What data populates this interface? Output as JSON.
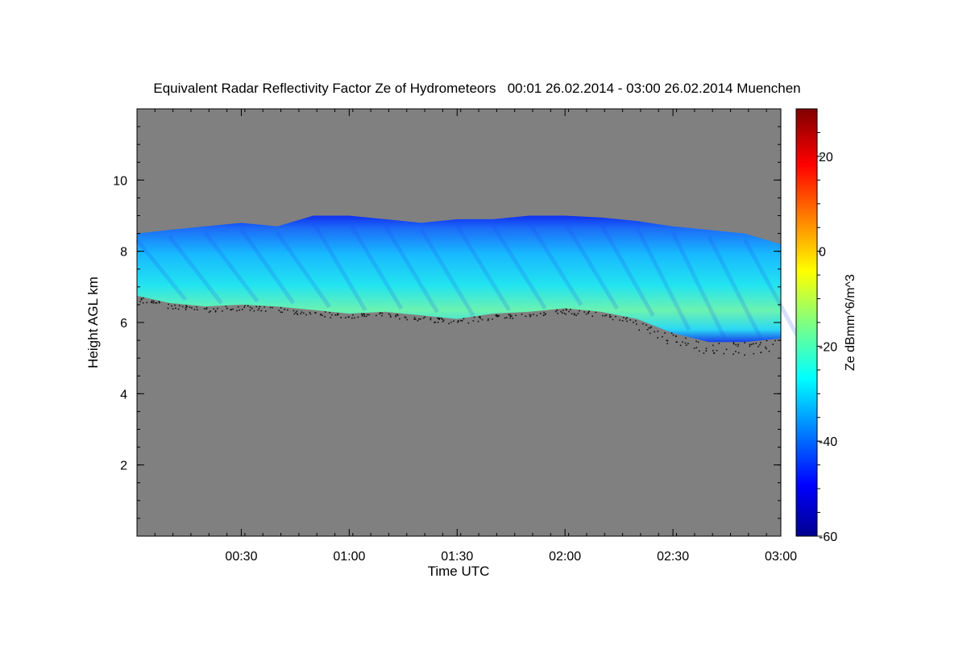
{
  "chart_data": {
    "type": "heatmap",
    "title": "Equivalent Radar Reflectivity Factor Ze of Hydrometeors   00:01 26.02.2014 - 03:00 26.02.2014 Muenchen",
    "xlabel": "Time UTC",
    "ylabel": "Height AGL km",
    "x_range_minutes": [
      1,
      180
    ],
    "ylim": [
      0,
      12
    ],
    "x_ticks": [
      {
        "minute": 30,
        "label": "00:30"
      },
      {
        "minute": 60,
        "label": "01:00"
      },
      {
        "minute": 90,
        "label": "01:30"
      },
      {
        "minute": 120,
        "label": "02:00"
      },
      {
        "minute": 150,
        "label": "02:30"
      },
      {
        "minute": 180,
        "label": "03:00"
      }
    ],
    "y_ticks": [
      {
        "value": 2,
        "label": "2"
      },
      {
        "value": 4,
        "label": "4"
      },
      {
        "value": 6,
        "label": "6"
      },
      {
        "value": 8,
        "label": "8"
      },
      {
        "value": 10,
        "label": "10"
      }
    ],
    "colorbar": {
      "label": "Ze dBmm^6/m^3",
      "range": [
        -60,
        30
      ],
      "ticks": [
        {
          "value": -60,
          "label": "-60"
        },
        {
          "value": -40,
          "label": "-40"
        },
        {
          "value": -20,
          "label": "-20"
        },
        {
          "value": 0,
          "label": "0"
        },
        {
          "value": 20,
          "label": "20"
        }
      ]
    },
    "background_color": "#808080",
    "echo_layer": {
      "description_times_minutes": [
        1,
        10,
        20,
        30,
        40,
        50,
        60,
        70,
        80,
        90,
        100,
        110,
        120,
        130,
        140,
        150,
        160,
        170,
        180
      ],
      "top_km": [
        8.5,
        8.6,
        8.7,
        8.8,
        8.7,
        9.0,
        9.0,
        8.9,
        8.8,
        8.9,
        8.9,
        9.0,
        9.0,
        8.95,
        8.85,
        8.7,
        8.6,
        8.5,
        8.2
      ],
      "base_km": [
        6.75,
        6.55,
        6.45,
        6.5,
        6.45,
        6.35,
        6.25,
        6.3,
        6.2,
        6.1,
        6.25,
        6.3,
        6.4,
        6.3,
        6.1,
        5.7,
        5.45,
        5.45,
        5.55
      ],
      "core_dbz": [
        -24,
        -24,
        -26,
        -24,
        -25,
        -24,
        -23,
        -22,
        -23,
        -24,
        -26,
        -25,
        -24,
        -23,
        -24,
        -23,
        -22,
        -23,
        -25
      ]
    }
  }
}
